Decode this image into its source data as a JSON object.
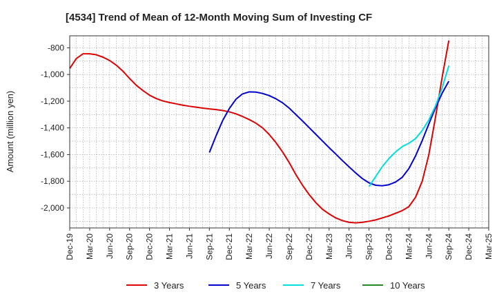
{
  "chart_data": {
    "type": "line",
    "title": "[4534]  Trend of Mean of 12-Month Moving Sum of Investing CF",
    "xlabel": "",
    "ylabel": "Amount (million yen)",
    "ylim": [
      -2150,
      -710
    ],
    "y_ticks": [
      -800,
      -1000,
      -1200,
      -1400,
      -1600,
      -1800,
      -2000
    ],
    "y_tick_labels": [
      "-800",
      "-1,000",
      "-1,200",
      "-1,400",
      "-1,600",
      "-1,800",
      "-2,000"
    ],
    "x_ticks": [
      "Dec-19",
      "Mar-20",
      "Jun-20",
      "Sep-20",
      "Dec-20",
      "Mar-21",
      "Jun-21",
      "Sep-21",
      "Dec-21",
      "Mar-22",
      "Jun-22",
      "Sep-22",
      "Dec-22",
      "Mar-23",
      "Jun-23",
      "Sep-23",
      "Dec-23",
      "Mar-24",
      "Jun-24",
      "Sep-24",
      "Dec-24",
      "Mar-25"
    ],
    "x_index_note": "x values are month offsets from Dec-19",
    "grid": true,
    "legend_position": "bottom",
    "series": [
      {
        "name": "3 Years",
        "color": "#dd0000",
        "x": [
          0,
          1,
          2,
          3,
          4,
          5,
          6,
          7,
          8,
          9,
          10,
          11,
          12,
          13,
          14,
          15,
          16,
          17,
          18,
          19,
          20,
          21,
          22,
          23,
          24,
          25,
          26,
          27,
          28,
          29,
          30,
          31,
          32,
          33,
          34,
          35,
          36,
          37,
          38,
          39,
          40,
          41,
          42,
          43,
          44,
          45,
          46,
          47,
          48,
          49,
          50,
          51,
          52,
          53,
          54,
          55,
          56,
          57
        ],
        "values": [
          -955,
          -880,
          -845,
          -845,
          -852,
          -870,
          -895,
          -930,
          -975,
          -1030,
          -1080,
          -1120,
          -1155,
          -1180,
          -1198,
          -1210,
          -1220,
          -1230,
          -1238,
          -1245,
          -1252,
          -1258,
          -1263,
          -1270,
          -1280,
          -1295,
          -1315,
          -1338,
          -1365,
          -1400,
          -1450,
          -1510,
          -1580,
          -1660,
          -1750,
          -1830,
          -1900,
          -1960,
          -2010,
          -2045,
          -2075,
          -2095,
          -2108,
          -2112,
          -2108,
          -2100,
          -2090,
          -2075,
          -2060,
          -2040,
          -2020,
          -1990,
          -1920,
          -1800,
          -1600,
          -1320,
          -1020,
          -745
        ]
      },
      {
        "name": "5 Years",
        "color": "#0000cc",
        "x": [
          21,
          22,
          23,
          24,
          25,
          26,
          27,
          28,
          29,
          30,
          31,
          32,
          33,
          34,
          35,
          36,
          37,
          38,
          39,
          40,
          41,
          42,
          43,
          44,
          45,
          46,
          47,
          48,
          49,
          50,
          51,
          52,
          53,
          54,
          55,
          56,
          57
        ],
        "values": [
          -1585,
          -1460,
          -1345,
          -1255,
          -1185,
          -1145,
          -1130,
          -1132,
          -1142,
          -1158,
          -1182,
          -1212,
          -1252,
          -1300,
          -1348,
          -1398,
          -1448,
          -1498,
          -1548,
          -1596,
          -1645,
          -1692,
          -1738,
          -1780,
          -1812,
          -1830,
          -1834,
          -1826,
          -1806,
          -1770,
          -1705,
          -1610,
          -1495,
          -1370,
          -1250,
          -1140,
          -1050
        ]
      },
      {
        "name": "7 Years",
        "color": "#00dddd",
        "x": [
          45,
          46,
          47,
          48,
          49,
          50,
          51,
          52,
          53,
          54,
          55,
          56,
          57
        ],
        "values": [
          -1840,
          -1765,
          -1690,
          -1630,
          -1580,
          -1540,
          -1515,
          -1480,
          -1420,
          -1340,
          -1235,
          -1100,
          -935
        ]
      },
      {
        "name": "10 Years",
        "color": "#228822",
        "x": [],
        "values": []
      }
    ]
  }
}
